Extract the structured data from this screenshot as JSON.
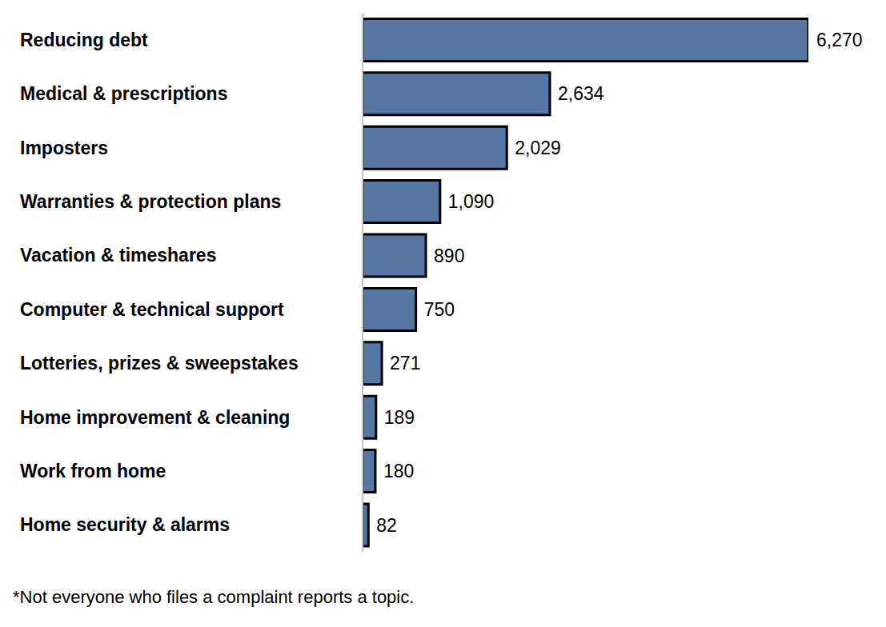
{
  "chart_data": {
    "type": "bar",
    "orientation": "horizontal",
    "categories": [
      "Reducing debt",
      "Medical & prescriptions",
      "Imposters",
      "Warranties & protection plans",
      "Vacation & timeshares",
      "Computer & technical support",
      "Lotteries, prizes & sweepstakes",
      "Home improvement & cleaning",
      "Work from home",
      "Home security & alarms"
    ],
    "values": [
      6270,
      2634,
      2029,
      1090,
      890,
      750,
      271,
      189,
      180,
      82
    ],
    "value_labels": [
      "6,270",
      "2,634",
      "2,029",
      "1,090",
      "890",
      "750",
      "271",
      "189",
      "180",
      "82"
    ],
    "color": "#5677a4",
    "data_labels": true,
    "tick_labels": "y",
    "grid": false,
    "annotations": [
      "*Not everyone who files a complaint reports a topic."
    ]
  }
}
